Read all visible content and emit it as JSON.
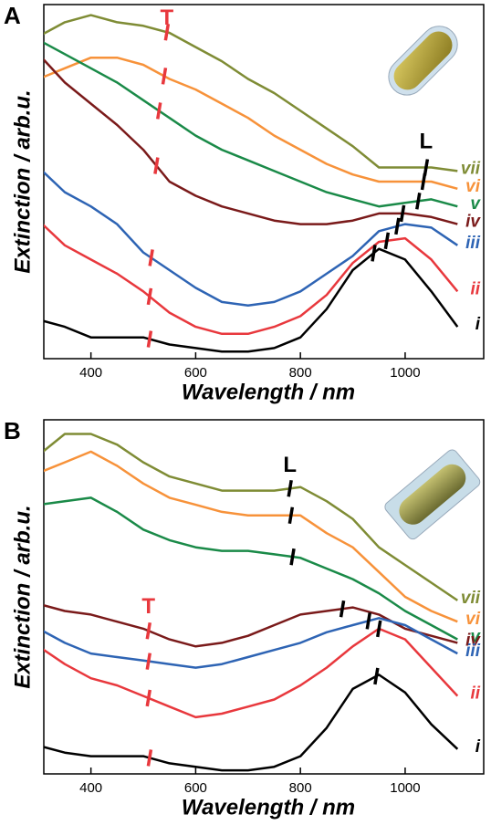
{
  "chart_data": [
    {
      "type": "line",
      "panel": "A",
      "xlabel": "Wavelength / nm",
      "ylabel": "Extinction / arb.u.",
      "xlim": [
        310,
        1150
      ],
      "ylim": [
        0,
        100
      ],
      "xticks": [
        400,
        600,
        800,
        1000
      ],
      "x": [
        300,
        350,
        400,
        450,
        500,
        550,
        600,
        650,
        700,
        750,
        800,
        850,
        900,
        950,
        1000,
        1050,
        1100
      ],
      "t_color": "#e8383d",
      "l_color": "#000000",
      "annotations": [
        {
          "text": "T",
          "x": 545,
          "y": 96
        },
        {
          "text": "L",
          "x": 1040,
          "y": 61
        }
      ],
      "series": [
        {
          "name": "vii",
          "color": "#7f8c35",
          "t_peak": 545,
          "l_peak": 1040,
          "values": [
            91,
            95,
            97,
            95,
            94,
            92,
            88,
            84,
            79,
            75,
            70,
            65,
            60,
            54,
            54,
            54,
            53
          ]
        },
        {
          "name": "vi",
          "color": "#f7923a",
          "t_peak": 540,
          "l_peak": 1035,
          "values": [
            79,
            82,
            85,
            85,
            83,
            79,
            76,
            72,
            68,
            63,
            59,
            55,
            52,
            50,
            50,
            50,
            48
          ]
        },
        {
          "name": "v",
          "color": "#1a8a48",
          "t_peak": 530,
          "l_peak": 1025,
          "values": [
            90,
            86,
            82,
            78,
            73,
            68,
            63,
            59,
            56,
            53,
            50,
            47,
            45,
            43,
            44,
            45,
            43
          ]
        },
        {
          "name": "iv",
          "color": "#7a1a1a",
          "t_peak": 525,
          "l_peak": 995,
          "values": [
            86,
            78,
            72,
            66,
            59,
            50,
            46,
            43,
            41,
            39,
            38,
            38,
            39,
            41,
            41,
            40,
            38
          ]
        },
        {
          "name": "iii",
          "color": "#2e64b4",
          "t_peak": 515,
          "l_peak": 985,
          "values": [
            54,
            47,
            43,
            38,
            30,
            25,
            20,
            16,
            15,
            16,
            19,
            24,
            29,
            36,
            38,
            37,
            32
          ]
        },
        {
          "name": "ii",
          "color": "#e8383d",
          "t_peak": 512,
          "l_peak": 965,
          "values": [
            39,
            32,
            28,
            24,
            19,
            13,
            9,
            7,
            7,
            9,
            12,
            18,
            27,
            33,
            34,
            28,
            19
          ]
        },
        {
          "name": "i",
          "color": "#000000",
          "t_peak": 512,
          "l_peak": 940,
          "values": [
            11,
            9,
            6,
            6,
            6,
            4,
            3,
            2,
            2,
            3,
            6,
            14,
            25,
            31,
            28,
            19,
            9
          ]
        }
      ]
    },
    {
      "type": "line",
      "panel": "B",
      "xlabel": "Wavelength / nm",
      "ylabel": "Extinction / arb.u.",
      "xlim": [
        310,
        1150
      ],
      "ylim": [
        0,
        100
      ],
      "xticks": [
        400,
        600,
        800,
        1000
      ],
      "x": [
        300,
        350,
        400,
        450,
        500,
        550,
        600,
        650,
        700,
        750,
        800,
        850,
        900,
        950,
        1000,
        1050,
        1100
      ],
      "t_color": "#e8383d",
      "l_color": "#000000",
      "annotations": [
        {
          "text": "L",
          "x": 780,
          "y": 87
        },
        {
          "text": "T",
          "x": 510,
          "y": 47
        }
      ],
      "series": [
        {
          "name": "vii",
          "color": "#7f8c35",
          "l_peak": 780,
          "values": [
            90,
            96,
            96,
            93,
            88,
            84,
            82,
            80,
            80,
            80,
            81,
            77,
            72,
            64,
            59,
            54,
            49
          ]
        },
        {
          "name": "vi",
          "color": "#f7923a",
          "l_peak": 782,
          "values": [
            85,
            88,
            91,
            87,
            82,
            78,
            76,
            74,
            73,
            73,
            73,
            68,
            64,
            57,
            50,
            46,
            43
          ]
        },
        {
          "name": "v",
          "color": "#1a8a48",
          "l_peak": 785,
          "values": [
            76,
            77,
            78,
            74,
            69,
            66,
            64,
            63,
            63,
            62,
            61,
            58,
            55,
            51,
            46,
            42,
            38
          ]
        },
        {
          "name": "iv",
          "color": "#7a1a1a",
          "t_peak": 510,
          "l_peak": 880,
          "values": [
            48,
            46,
            45,
            43,
            41,
            38,
            36,
            37,
            39,
            42,
            45,
            46,
            47,
            45,
            41,
            39,
            37
          ]
        },
        {
          "name": "iii",
          "color": "#2e64b4",
          "t_peak": 510,
          "l_peak": 930,
          "values": [
            41,
            37,
            34,
            33,
            32,
            31,
            30,
            31,
            33,
            35,
            37,
            40,
            42,
            44,
            42,
            38,
            34
          ]
        },
        {
          "name": "ii",
          "color": "#e8383d",
          "t_peak": 510,
          "l_peak": 950,
          "values": [
            36,
            31,
            27,
            25,
            22,
            19,
            16,
            17,
            19,
            21,
            25,
            30,
            36,
            41,
            38,
            30,
            22
          ]
        },
        {
          "name": "i",
          "color": "#000000",
          "t_peak": 512,
          "l_peak": 945,
          "values": [
            8,
            6,
            5,
            5,
            5,
            3,
            2,
            1,
            1,
            2,
            5,
            13,
            24,
            28,
            23,
            14,
            7
          ]
        }
      ]
    }
  ]
}
